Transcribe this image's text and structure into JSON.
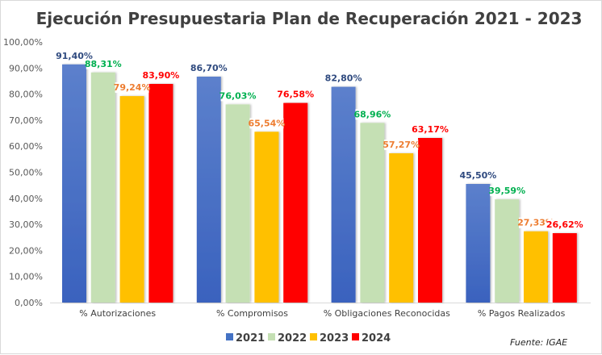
{
  "chart_data": {
    "type": "bar",
    "title": "Ejecución Presupuestaria  Plan de Recuperación 2021 - 2023",
    "xlabel": "",
    "ylabel": "",
    "categories": [
      "% Autorizaciones",
      "% Compromisos",
      "% Obligaciones Reconocidas",
      "% Pagos Realizados"
    ],
    "series": [
      {
        "name": "2021",
        "color": "#4472C4",
        "label_color": "#2F4A7F",
        "values": [
          91.4,
          86.7,
          82.8,
          45.5
        ],
        "labels": [
          "91,40%",
          "86,70%",
          "82,80%",
          "45,50%"
        ]
      },
      {
        "name": "2022",
        "color": "#C5E0B4",
        "label_color": "#00B050",
        "values": [
          88.31,
          76.03,
          68.96,
          39.59
        ],
        "labels": [
          "88,31%",
          "76,03%",
          "68,96%",
          "39,59%"
        ]
      },
      {
        "name": "2023",
        "color": "#FFC000",
        "label_color": "#ED7D31",
        "values": [
          79.24,
          65.54,
          57.27,
          27.33
        ],
        "labels": [
          "79,24%",
          "65,54%",
          "57,27%",
          "27,33%"
        ]
      },
      {
        "name": "2024",
        "color": "#FF0000",
        "label_color": "#FF0000",
        "values": [
          83.9,
          76.58,
          63.17,
          26.62
        ],
        "labels": [
          "83,90%",
          "76,58%",
          "63,17%",
          "26,62%"
        ]
      }
    ],
    "ylim": [
      0,
      100
    ],
    "yticks": [
      0,
      10,
      20,
      30,
      40,
      50,
      60,
      70,
      80,
      90,
      100
    ],
    "ytick_labels": [
      "0,00%",
      "10,00%",
      "20,00%",
      "30,00%",
      "40,00%",
      "50,00%",
      "60,00%",
      "70,00%",
      "80,00%",
      "90,00%",
      "100,00%"
    ],
    "grid": false,
    "legend_position": "bottom",
    "source_note": "Fuente:  IGAE"
  }
}
